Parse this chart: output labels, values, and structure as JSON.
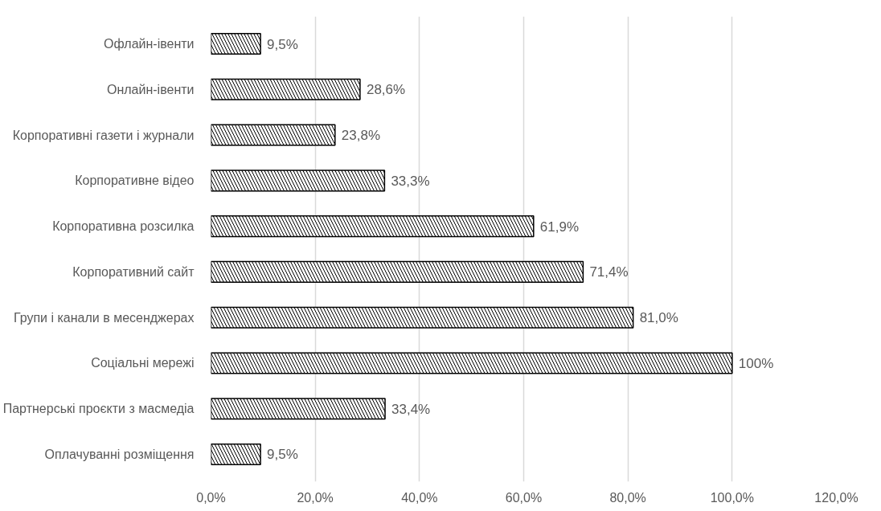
{
  "chart_data": {
    "type": "bar",
    "orientation": "horizontal",
    "categories": [
      "Офлайн-івенти",
      "Онлайн-івенти",
      "Корпоративні газети і журнали",
      "Корпоративне відео",
      "Корпоративна розсилка",
      "Корпоративний сайт",
      "Групи і канали в месенджерах",
      "Соціальні мережі",
      "Партнерські проєкти з масмедіа",
      "Оплачуванні розміщення"
    ],
    "values": [
      9.5,
      28.6,
      23.8,
      33.3,
      61.9,
      71.4,
      81.0,
      100,
      33.4,
      9.5
    ],
    "value_labels": [
      "9,5%",
      "28,6%",
      "23,8%",
      "33,3%",
      "61,9%",
      "71,4%",
      "81,0%",
      "100%",
      "33,4%",
      "9,5%"
    ],
    "color": "#000000",
    "xlim": [
      0,
      120
    ],
    "xticks": [
      {
        "value": 0,
        "label": "0,0%"
      },
      {
        "value": 20,
        "label": "20,0%"
      },
      {
        "value": 40,
        "label": "40,0%"
      },
      {
        "value": 60,
        "label": "60,0%"
      },
      {
        "value": 80,
        "label": "80,0%"
      },
      {
        "value": 100,
        "label": "100,0%"
      },
      {
        "value": 120,
        "label": "120,0%"
      }
    ],
    "grid": "x"
  }
}
